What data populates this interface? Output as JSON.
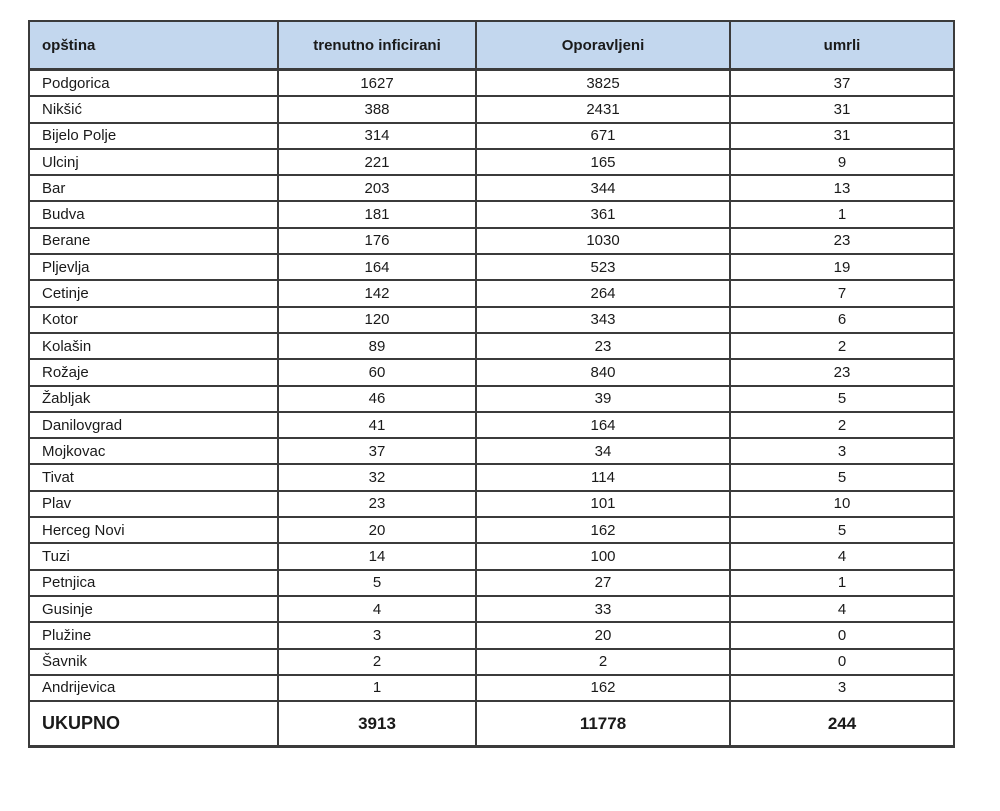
{
  "chart_data": {
    "type": "table",
    "columns": [
      "opština",
      "trenutno inficirani",
      "Oporavljeni",
      "umrli"
    ],
    "column_alignments": [
      "left",
      "center",
      "center",
      "center"
    ],
    "rows": [
      [
        "Podgorica",
        1627,
        3825,
        37
      ],
      [
        "Nikšić",
        388,
        2431,
        31
      ],
      [
        "Bijelo Polje",
        314,
        671,
        31
      ],
      [
        "Ulcinj",
        221,
        165,
        9
      ],
      [
        "Bar",
        203,
        344,
        13
      ],
      [
        "Budva",
        181,
        361,
        1
      ],
      [
        "Berane",
        176,
        1030,
        23
      ],
      [
        "Pljevlja",
        164,
        523,
        19
      ],
      [
        "Cetinje",
        142,
        264,
        7
      ],
      [
        "Kotor",
        120,
        343,
        6
      ],
      [
        "Kolašin",
        89,
        23,
        2
      ],
      [
        "Rožaje",
        60,
        840,
        23
      ],
      [
        "Žabljak",
        46,
        39,
        5
      ],
      [
        "Danilovgrad",
        41,
        164,
        2
      ],
      [
        "Mojkovac",
        37,
        34,
        3
      ],
      [
        "Tivat",
        32,
        114,
        5
      ],
      [
        "Plav",
        23,
        101,
        10
      ],
      [
        "Herceg Novi",
        20,
        162,
        5
      ],
      [
        "Tuzi",
        14,
        100,
        4
      ],
      [
        "Petnjica",
        5,
        27,
        1
      ],
      [
        "Gusinje",
        4,
        33,
        4
      ],
      [
        "Plužine",
        3,
        20,
        0
      ],
      [
        "Šavnik",
        2,
        2,
        0
      ],
      [
        "Andrijevica",
        1,
        162,
        3
      ]
    ],
    "total_row": [
      "UKUPNO",
      3913,
      11778,
      244
    ]
  },
  "colors": {
    "header_bg": "#c3d7ee",
    "border": "#3b3b3b",
    "text": "#1a1a1a"
  }
}
